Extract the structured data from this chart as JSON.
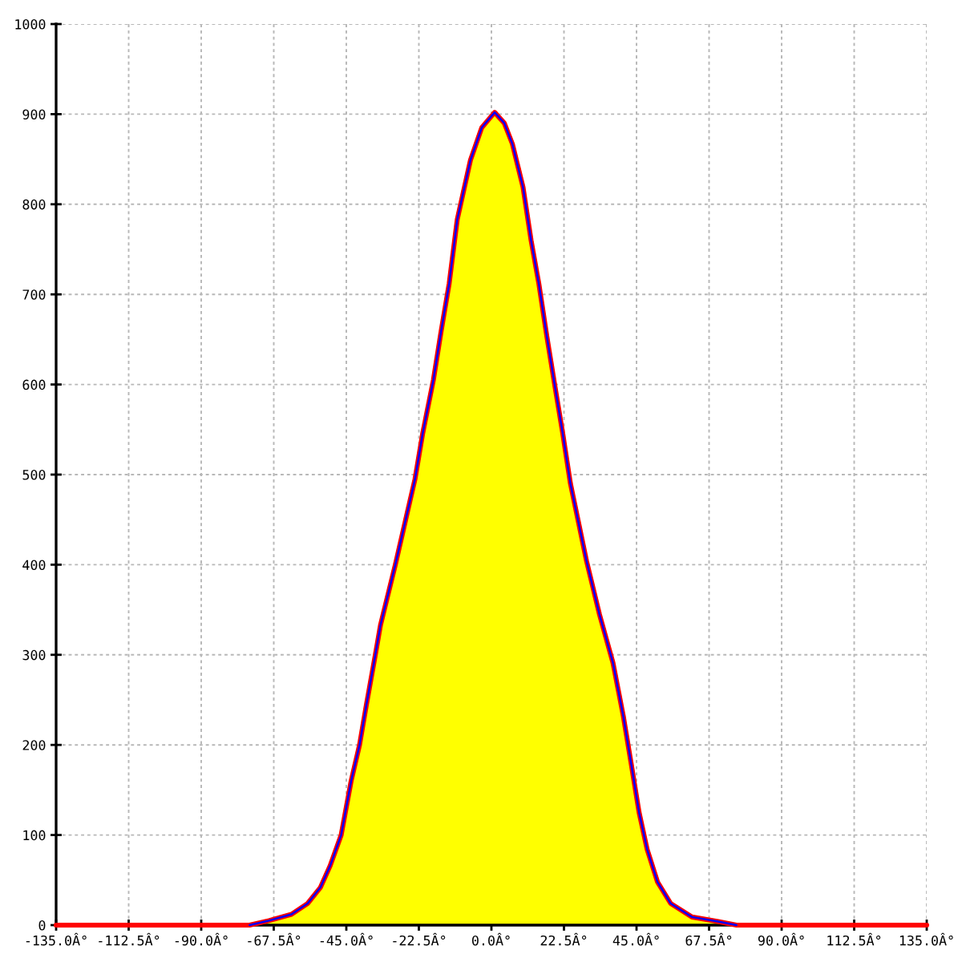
{
  "chart_data": {
    "type": "area",
    "xlim": [
      -135,
      135
    ],
    "xticks": [
      {
        "value": -135,
        "label": "-135.0Â°"
      },
      {
        "value": -112.5,
        "label": "-112.5Â°"
      },
      {
        "value": -90,
        "label": "-90.0Â°"
      },
      {
        "value": -67.5,
        "label": "-67.5Â°"
      },
      {
        "value": -45,
        "label": "-45.0Â°"
      },
      {
        "value": -22.5,
        "label": "-22.5Â°"
      },
      {
        "value": 0,
        "label": "0.0Â°"
      },
      {
        "value": 22.5,
        "label": "22.5Â°"
      },
      {
        "value": 45,
        "label": "45.0Â°"
      },
      {
        "value": 67.5,
        "label": "67.5Â°"
      },
      {
        "value": 90,
        "label": "90.0Â°"
      },
      {
        "value": 112.5,
        "label": "112.5Â°"
      },
      {
        "value": 135,
        "label": "135.0Â°"
      }
    ],
    "ylim": [
      0,
      1000
    ],
    "yticks": [
      0,
      100,
      200,
      300,
      400,
      500,
      600,
      700,
      800,
      900,
      1000
    ],
    "grid": true,
    "marker": "none",
    "line_style": "solid",
    "series": [
      {
        "color": "#ffff00",
        "x": [
          -80,
          -75,
          -69,
          -62,
          -57,
          -53,
          -50,
          -46.6,
          -43.5,
          -40.9,
          -38.8,
          -36,
          -34.4,
          -29.8,
          -23.7,
          -21.3,
          -18,
          -15.6,
          -13.1,
          -10.6,
          -6.5,
          -3,
          1,
          4,
          6.5,
          9.8,
          12.3,
          14.7,
          17.2,
          19.6,
          22.1,
          24.5,
          29.5,
          33.5,
          37.7,
          40.9,
          43.4,
          45.8,
          48.3,
          51.5,
          55.6,
          62.2,
          70.3,
          76,
          80
        ],
        "values": [
          0,
          0,
          5,
          12,
          24,
          42,
          66,
          100,
          160,
          200,
          244,
          300,
          333,
          400,
          495,
          546,
          605,
          659,
          712,
          783,
          849,
          885,
          902,
          890,
          867,
          819,
          760,
          712,
          653,
          600,
          546,
          490,
          404,
          345,
          291,
          232,
          178,
          125,
          84,
          48,
          24,
          9,
          4,
          0,
          0
        ]
      },
      {
        "type": "line",
        "color": "#ff0000",
        "x": [
          -135,
          -75,
          -69,
          -62,
          -57,
          -53,
          -50,
          -46.6,
          -43.5,
          -40.9,
          -38.8,
          -36,
          -34.4,
          -29.8,
          -23.7,
          -21.3,
          -18,
          -15.6,
          -13.1,
          -10.6,
          -6.5,
          -3,
          1,
          4,
          6.5,
          9.8,
          12.3,
          14.7,
          17.2,
          19.6,
          22.1,
          24.5,
          29.5,
          33.5,
          37.7,
          40.9,
          43.4,
          45.8,
          48.3,
          51.5,
          55.6,
          62.2,
          70.3,
          76,
          135
        ],
        "values": [
          0,
          0,
          5,
          12,
          24,
          42,
          66,
          100,
          160,
          200,
          244,
          300,
          333,
          400,
          495,
          546,
          605,
          659,
          712,
          783,
          849,
          885,
          902,
          890,
          867,
          819,
          760,
          712,
          653,
          600,
          546,
          490,
          404,
          345,
          291,
          232,
          178,
          125,
          84,
          48,
          24,
          9,
          4,
          0,
          0
        ]
      },
      {
        "type": "line",
        "color": "#0000ff",
        "x": [
          -75,
          -69,
          -62,
          -57,
          -53,
          -50,
          -46.6,
          -43.5,
          -40.9,
          -38.8,
          -36,
          -34.4,
          -29.8,
          -23.7,
          -21.3,
          -18,
          -15.6,
          -13.1,
          -10.6,
          -6.5,
          -3,
          1,
          4,
          6.5,
          9.8,
          12.3,
          14.7,
          17.2,
          19.6,
          22.1,
          24.5,
          29.5,
          33.5,
          37.7,
          40.9,
          43.4,
          45.8,
          48.3,
          51.5,
          55.6,
          62.2,
          70.3,
          76
        ],
        "values": [
          0,
          5,
          12,
          24,
          42,
          66,
          100,
          160,
          200,
          244,
          300,
          333,
          400,
          495,
          546,
          605,
          659,
          712,
          783,
          849,
          885,
          902,
          890,
          867,
          819,
          760,
          712,
          653,
          600,
          546,
          490,
          404,
          345,
          291,
          232,
          178,
          125,
          84,
          48,
          24,
          9,
          4,
          0
        ]
      }
    ]
  }
}
